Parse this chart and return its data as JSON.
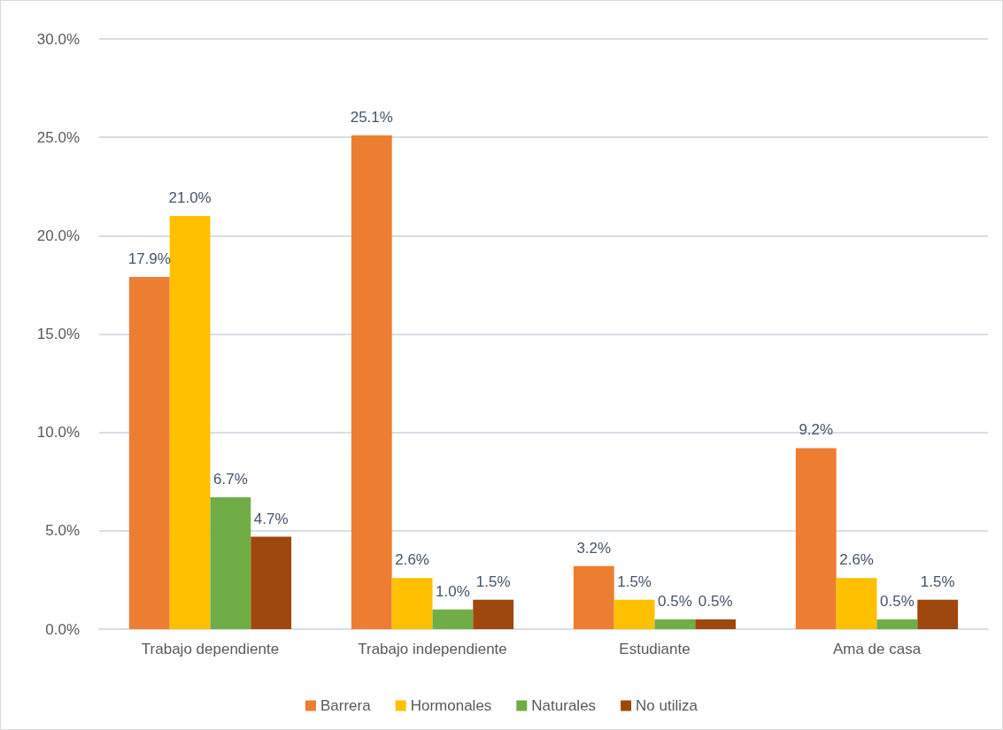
{
  "chart_data": {
    "type": "bar",
    "categories": [
      "Trabajo dependiente",
      "Trabajo independiente",
      "Estudiante",
      "Ama de casa"
    ],
    "series": [
      {
        "name": "Barrera",
        "color": "#ed7d31",
        "values": [
          17.9,
          25.1,
          3.2,
          9.2
        ],
        "value_labels": [
          "17.9%",
          "25.1%",
          "3.2%",
          "9.2%"
        ]
      },
      {
        "name": "Hormonales",
        "color": "#ffc000",
        "values": [
          21.0,
          2.6,
          1.5,
          2.6
        ],
        "value_labels": [
          "21.0%",
          "2.6%",
          "1.5%",
          "2.6%"
        ]
      },
      {
        "name": "Naturales",
        "color": "#70ad47",
        "values": [
          6.7,
          1.0,
          0.5,
          0.5
        ],
        "value_labels": [
          "6.7%",
          "1.0%",
          "0.5%",
          "0.5%"
        ]
      },
      {
        "name": "No utiliza",
        "color": "#9e480e",
        "values": [
          4.7,
          1.5,
          0.5,
          1.5
        ],
        "value_labels": [
          "4.7%",
          "1.5%",
          "0.5%",
          "1.5%"
        ]
      }
    ],
    "ylim": [
      0,
      30
    ],
    "yticks": [
      {
        "value": 0,
        "label": "0.0%"
      },
      {
        "value": 5,
        "label": "5.0%"
      },
      {
        "value": 10,
        "label": "10.0%"
      },
      {
        "value": 15,
        "label": "15.0%"
      },
      {
        "value": 20,
        "label": "20.0%"
      },
      {
        "value": 25,
        "label": "25.0%"
      },
      {
        "value": 30,
        "label": "30.0%"
      }
    ],
    "grid": "y",
    "legend": "bottom"
  }
}
